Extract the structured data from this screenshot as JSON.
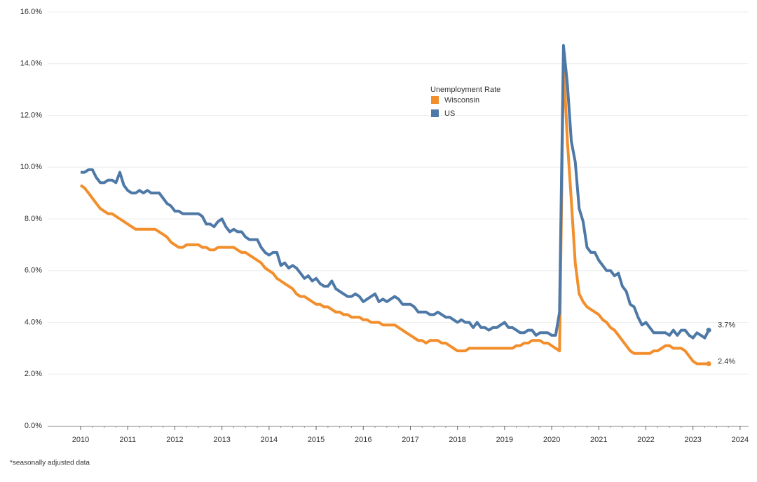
{
  "chart_data": {
    "type": "line",
    "x": [
      2010,
      2010.083,
      2010.167,
      2010.25,
      2010.333,
      2010.417,
      2010.5,
      2010.583,
      2010.667,
      2010.75,
      2010.833,
      2010.917,
      2011,
      2011.083,
      2011.167,
      2011.25,
      2011.333,
      2011.417,
      2011.5,
      2011.583,
      2011.667,
      2011.75,
      2011.833,
      2011.917,
      2012,
      2012.083,
      2012.167,
      2012.25,
      2012.333,
      2012.417,
      2012.5,
      2012.583,
      2012.667,
      2012.75,
      2012.833,
      2012.917,
      2013,
      2013.083,
      2013.167,
      2013.25,
      2013.333,
      2013.417,
      2013.5,
      2013.583,
      2013.667,
      2013.75,
      2013.833,
      2013.917,
      2014,
      2014.083,
      2014.167,
      2014.25,
      2014.333,
      2014.417,
      2014.5,
      2014.583,
      2014.667,
      2014.75,
      2014.833,
      2014.917,
      2015,
      2015.083,
      2015.167,
      2015.25,
      2015.333,
      2015.417,
      2015.5,
      2015.583,
      2015.667,
      2015.75,
      2015.833,
      2015.917,
      2016,
      2016.083,
      2016.167,
      2016.25,
      2016.333,
      2016.417,
      2016.5,
      2016.583,
      2016.667,
      2016.75,
      2016.833,
      2016.917,
      2017,
      2017.083,
      2017.167,
      2017.25,
      2017.333,
      2017.417,
      2017.5,
      2017.583,
      2017.667,
      2017.75,
      2017.833,
      2017.917,
      2018,
      2018.083,
      2018.167,
      2018.25,
      2018.333,
      2018.417,
      2018.5,
      2018.583,
      2018.667,
      2018.75,
      2018.833,
      2018.917,
      2019,
      2019.083,
      2019.167,
      2019.25,
      2019.333,
      2019.417,
      2019.5,
      2019.583,
      2019.667,
      2019.75,
      2019.833,
      2019.917,
      2020,
      2020.083,
      2020.167,
      2020.25,
      2020.333,
      2020.417,
      2020.5,
      2020.583,
      2020.667,
      2020.75,
      2020.833,
      2020.917,
      2021,
      2021.083,
      2021.167,
      2021.25,
      2021.333,
      2021.417,
      2021.5,
      2021.583,
      2021.667,
      2021.75,
      2021.833,
      2021.917,
      2022,
      2022.083,
      2022.167,
      2022.25,
      2022.333,
      2022.417,
      2022.5,
      2022.583,
      2022.667,
      2022.75,
      2022.833,
      2022.917,
      2023,
      2023.083,
      2023.167,
      2023.25,
      2023.333
    ],
    "series": [
      {
        "name": "Wisconsin",
        "color": "#f28e2b",
        "label": "2.4%",
        "values": [
          9.3,
          9.2,
          9.0,
          8.8,
          8.6,
          8.4,
          8.3,
          8.2,
          8.2,
          8.1,
          8.0,
          7.9,
          7.8,
          7.7,
          7.6,
          7.6,
          7.6,
          7.6,
          7.6,
          7.6,
          7.5,
          7.4,
          7.3,
          7.1,
          7.0,
          6.9,
          6.9,
          7.0,
          7.0,
          7.0,
          7.0,
          6.9,
          6.9,
          6.8,
          6.8,
          6.9,
          6.9,
          6.9,
          6.9,
          6.9,
          6.8,
          6.7,
          6.7,
          6.6,
          6.5,
          6.4,
          6.3,
          6.1,
          6.0,
          5.9,
          5.7,
          5.6,
          5.5,
          5.4,
          5.3,
          5.1,
          5.0,
          5.0,
          4.9,
          4.8,
          4.7,
          4.7,
          4.6,
          4.6,
          4.5,
          4.4,
          4.4,
          4.3,
          4.3,
          4.2,
          4.2,
          4.2,
          4.1,
          4.1,
          4.0,
          4.0,
          4.0,
          3.9,
          3.9,
          3.9,
          3.9,
          3.8,
          3.7,
          3.6,
          3.5,
          3.4,
          3.3,
          3.3,
          3.2,
          3.3,
          3.3,
          3.3,
          3.2,
          3.2,
          3.1,
          3.0,
          2.9,
          2.9,
          2.9,
          3.0,
          3.0,
          3.0,
          3.0,
          3.0,
          3.0,
          3.0,
          3.0,
          3.0,
          3.0,
          3.0,
          3.0,
          3.1,
          3.1,
          3.2,
          3.2,
          3.3,
          3.3,
          3.3,
          3.2,
          3.2,
          3.1,
          3.0,
          2.9,
          14.1,
          11.0,
          8.7,
          6.3,
          5.1,
          4.8,
          4.6,
          4.5,
          4.4,
          4.3,
          4.1,
          4.0,
          3.8,
          3.7,
          3.5,
          3.3,
          3.1,
          2.9,
          2.8,
          2.8,
          2.8,
          2.8,
          2.8,
          2.9,
          2.9,
          3.0,
          3.1,
          3.1,
          3.0,
          3.0,
          3.0,
          2.9,
          2.7,
          2.5,
          2.4,
          2.4,
          2.4,
          2.4
        ]
      },
      {
        "name": "US",
        "color": "#4e79a7",
        "label": "3.7%",
        "values": [
          9.8,
          9.8,
          9.9,
          9.9,
          9.6,
          9.4,
          9.4,
          9.5,
          9.5,
          9.4,
          9.8,
          9.3,
          9.1,
          9.0,
          9.0,
          9.1,
          9.0,
          9.1,
          9.0,
          9.0,
          9.0,
          8.8,
          8.6,
          8.5,
          8.3,
          8.3,
          8.2,
          8.2,
          8.2,
          8.2,
          8.2,
          8.1,
          7.8,
          7.8,
          7.7,
          7.9,
          8.0,
          7.7,
          7.5,
          7.6,
          7.5,
          7.5,
          7.3,
          7.2,
          7.2,
          7.2,
          6.9,
          6.7,
          6.6,
          6.7,
          6.7,
          6.2,
          6.3,
          6.1,
          6.2,
          6.1,
          5.9,
          5.7,
          5.8,
          5.6,
          5.7,
          5.5,
          5.4,
          5.4,
          5.6,
          5.3,
          5.2,
          5.1,
          5.0,
          5.0,
          5.1,
          5.0,
          4.8,
          4.9,
          5.0,
          5.1,
          4.8,
          4.9,
          4.8,
          4.9,
          5.0,
          4.9,
          4.7,
          4.7,
          4.7,
          4.6,
          4.4,
          4.4,
          4.4,
          4.3,
          4.3,
          4.4,
          4.3,
          4.2,
          4.2,
          4.1,
          4.0,
          4.1,
          4.0,
          4.0,
          3.8,
          4.0,
          3.8,
          3.8,
          3.7,
          3.8,
          3.8,
          3.9,
          4.0,
          3.8,
          3.8,
          3.7,
          3.6,
          3.6,
          3.7,
          3.7,
          3.5,
          3.6,
          3.6,
          3.6,
          3.5,
          3.5,
          4.4,
          14.7,
          13.2,
          11.0,
          10.2,
          8.4,
          7.9,
          6.9,
          6.7,
          6.7,
          6.4,
          6.2,
          6.0,
          6.0,
          5.8,
          5.9,
          5.4,
          5.2,
          4.7,
          4.6,
          4.2,
          3.9,
          4.0,
          3.8,
          3.6,
          3.6,
          3.6,
          3.6,
          3.5,
          3.7,
          3.5,
          3.7,
          3.7,
          3.5,
          3.4,
          3.6,
          3.5,
          3.4,
          3.7
        ]
      }
    ],
    "legend_title": "Unemployment Rate",
    "footnote": "*seasonally adjusted data",
    "xlim": [
      2009.3,
      2024.18
    ],
    "xticks": [
      2010,
      2011,
      2012,
      2013,
      2014,
      2015,
      2016,
      2017,
      2018,
      2019,
      2020,
      2021,
      2022,
      2023,
      2024
    ],
    "ylim": [
      0,
      16
    ],
    "yticks": [
      {
        "value": 0,
        "label": "0.0%"
      },
      {
        "value": 2,
        "label": "2.0%"
      },
      {
        "value": 4,
        "label": "4.0%"
      },
      {
        "value": 6,
        "label": "6.0%"
      },
      {
        "value": 8,
        "label": "8.0%"
      },
      {
        "value": 10,
        "label": "10.0%"
      },
      {
        "value": 12,
        "label": "12.0%"
      },
      {
        "value": 14,
        "label": "14.0%"
      },
      {
        "value": 16,
        "label": "16.0%"
      }
    ],
    "grid": true
  }
}
